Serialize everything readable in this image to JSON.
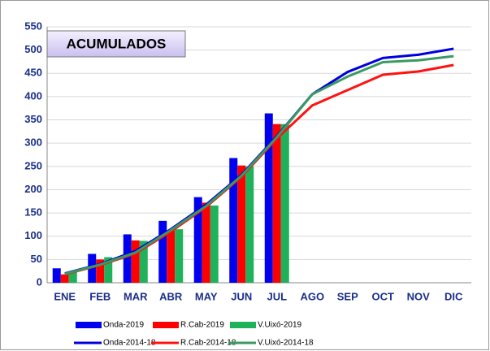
{
  "chart_data": {
    "type": "bar-line",
    "title": "ACUMULADOS",
    "categories": [
      "ENE",
      "FEB",
      "MAR",
      "ABR",
      "MAY",
      "JUN",
      "JUL",
      "AGO",
      "SEP",
      "OCT",
      "NOV",
      "DIC"
    ],
    "ylim": [
      0,
      550
    ],
    "yticks": [
      0,
      50,
      100,
      150,
      200,
      250,
      300,
      350,
      400,
      450,
      500,
      550
    ],
    "grid": true,
    "legend": "bottom",
    "series": [
      {
        "name": "Onda-2019",
        "kind": "bar",
        "color": "#0000ee",
        "values": [
          31,
          62,
          104,
          133,
          184,
          268,
          364,
          null,
          null,
          null,
          null,
          null
        ]
      },
      {
        "name": "R.Cab-2019",
        "kind": "bar",
        "color": "#ff0000",
        "values": [
          18,
          50,
          91,
          112,
          172,
          252,
          341,
          null,
          null,
          null,
          null,
          null
        ]
      },
      {
        "name": "V.Uixó-2019",
        "kind": "bar",
        "color": "#1fb25a",
        "values": [
          25,
          55,
          90,
          115,
          166,
          250,
          341,
          null,
          null,
          null,
          null,
          null
        ]
      },
      {
        "name": "Onda-2014-18",
        "kind": "line",
        "color": "#0000dd",
        "values": [
          20,
          40,
          68,
          115,
          168,
          232,
          315,
          405,
          453,
          483,
          490,
          503
        ]
      },
      {
        "name": "R.Cab-2014-18",
        "kind": "line",
        "color": "#ff1111",
        "values": [
          18,
          38,
          63,
          110,
          163,
          228,
          310,
          381,
          414,
          447,
          454,
          468
        ]
      },
      {
        "name": "V.Uixó-2014-18",
        "kind": "line",
        "color": "#3a9a60",
        "values": [
          19,
          39,
          65,
          113,
          165,
          230,
          313,
          405,
          443,
          474,
          478,
          487
        ]
      }
    ]
  }
}
